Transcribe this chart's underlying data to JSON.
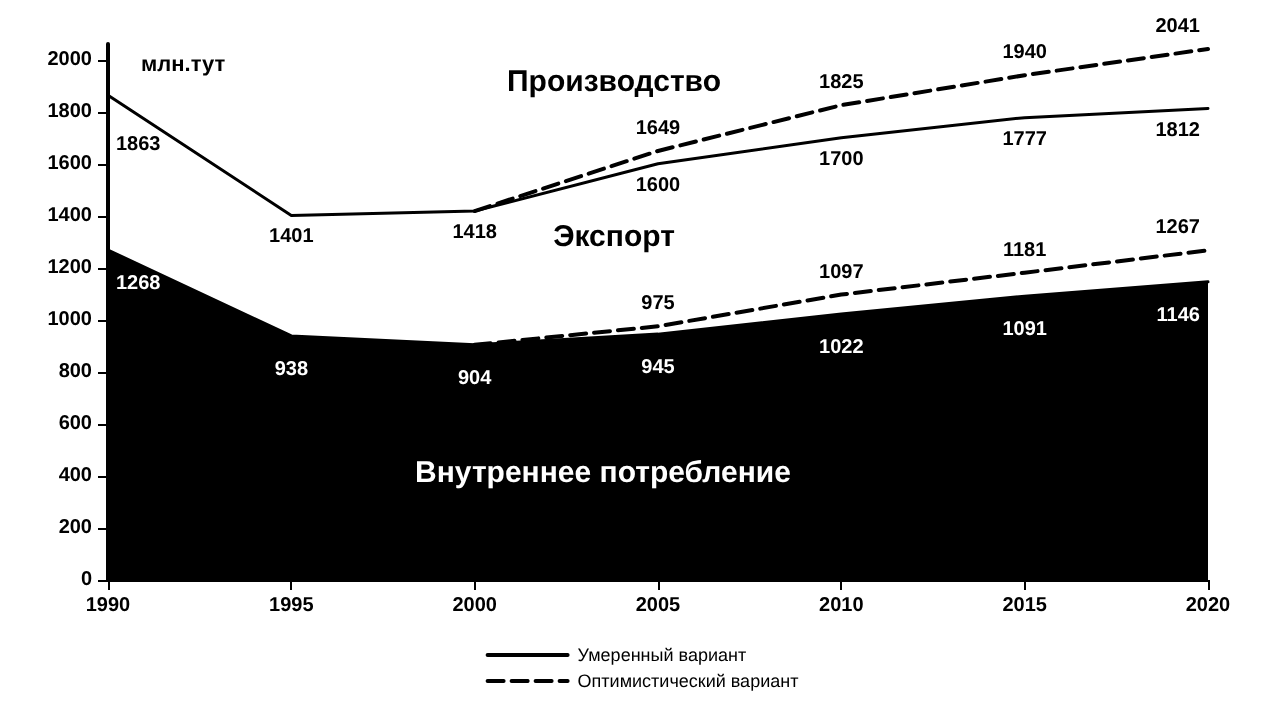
{
  "chart_data": {
    "type": "line",
    "x": [
      1990,
      1995,
      2000,
      2005,
      2010,
      2015,
      2020
    ],
    "series": [
      {
        "name": "Умеренный вариант",
        "color": "#000000",
        "line_style": "solid",
        "values": [
          1863,
          1401,
          1418,
          1600,
          1700,
          1777,
          1812
        ],
        "value_labels": [
          "1863",
          "1401",
          "1418",
          "1600",
          "1700",
          "1777",
          "1812"
        ]
      },
      {
        "name": "Оптимистический вариант",
        "color": "#000000",
        "line_style": "dashed",
        "values": [
          null,
          null,
          1418,
          1649,
          1825,
          1940,
          2041
        ],
        "value_labels": [
          null,
          null,
          null,
          "1649",
          "1825",
          "1940",
          "2041"
        ]
      },
      {
        "type": "area",
        "color": "#000000",
        "line_style": "solid",
        "values": [
          1268,
          938,
          904,
          945,
          1022,
          1091,
          1146
        ],
        "value_labels": [
          "1268",
          "938",
          "904",
          "945",
          "1022",
          "1091",
          "1146"
        ]
      },
      {
        "color": "#000000",
        "line_style": "dashed",
        "values": [
          null,
          null,
          904,
          975,
          1097,
          1181,
          1267
        ],
        "value_labels": [
          null,
          null,
          null,
          "975",
          "1097",
          "1181",
          "1267"
        ]
      }
    ],
    "xlim": [
      1990,
      2020
    ],
    "xticks": [
      1990,
      1995,
      2000,
      2005,
      2010,
      2015,
      2020
    ],
    "ylim": [
      0,
      2060
    ],
    "yticks": [
      0,
      200,
      400,
      600,
      800,
      1000,
      1200,
      1400,
      1600,
      1800,
      2000
    ],
    "annotations": [
      "млн.тут",
      "Производство",
      "Экспорт",
      "Внутреннее потребление"
    ],
    "grid": false,
    "legend": "bottom",
    "marker": "none"
  }
}
